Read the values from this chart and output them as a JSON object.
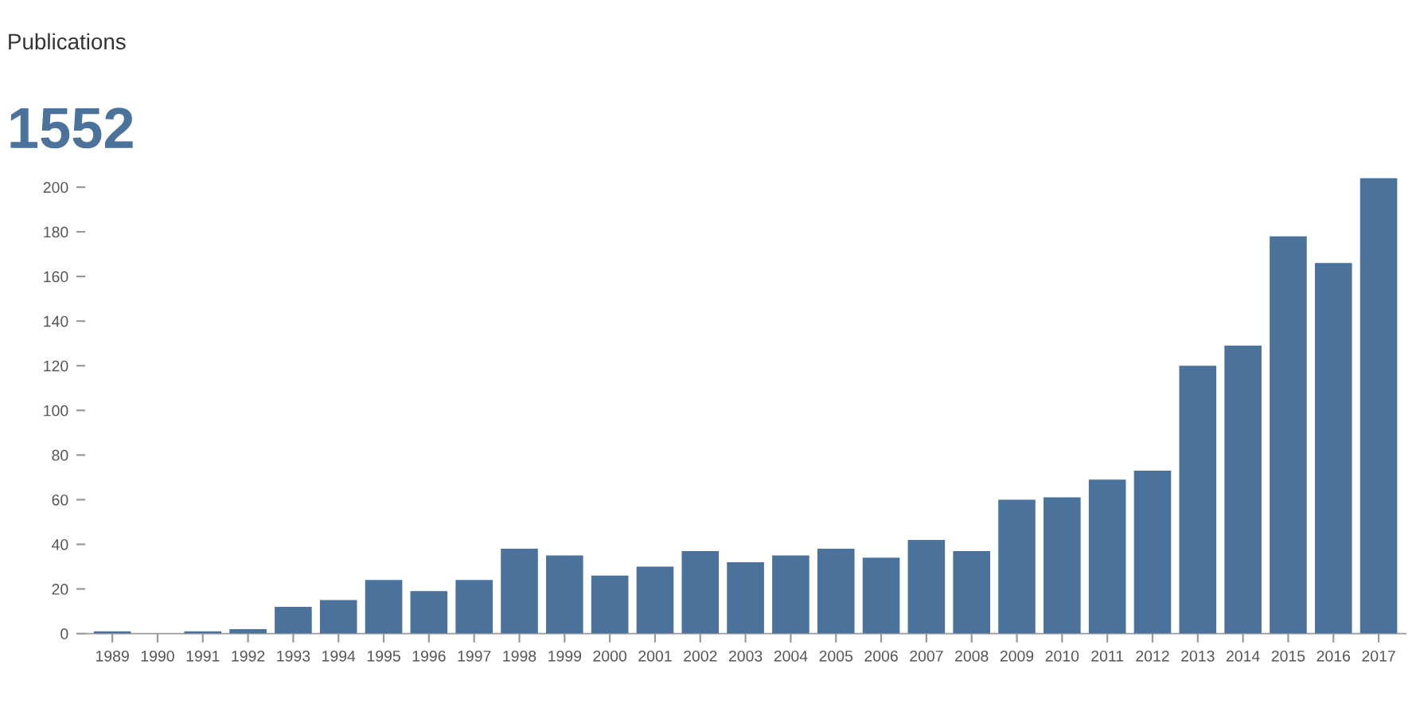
{
  "chart_data": {
    "type": "bar",
    "title": "Publications",
    "subtitle": "1552",
    "categories": [
      "1989",
      "1990",
      "1991",
      "1992",
      "1993",
      "1994",
      "1995",
      "1996",
      "1997",
      "1998",
      "1999",
      "2000",
      "2001",
      "2002",
      "2003",
      "2004",
      "2005",
      "2006",
      "2007",
      "2008",
      "2009",
      "2010",
      "2011",
      "2012",
      "2013",
      "2014",
      "2015",
      "2016",
      "2017"
    ],
    "values": [
      1,
      0,
      1,
      2,
      12,
      15,
      24,
      19,
      24,
      38,
      35,
      26,
      30,
      37,
      32,
      35,
      38,
      34,
      42,
      37,
      60,
      61,
      69,
      73,
      120,
      129,
      178,
      166,
      204
    ],
    "color": "#4a729a",
    "ylim": [
      0,
      205
    ],
    "yticks": [
      0,
      20,
      40,
      60,
      80,
      100,
      120,
      140,
      160,
      180,
      200
    ],
    "grid": false,
    "legend": false
  }
}
